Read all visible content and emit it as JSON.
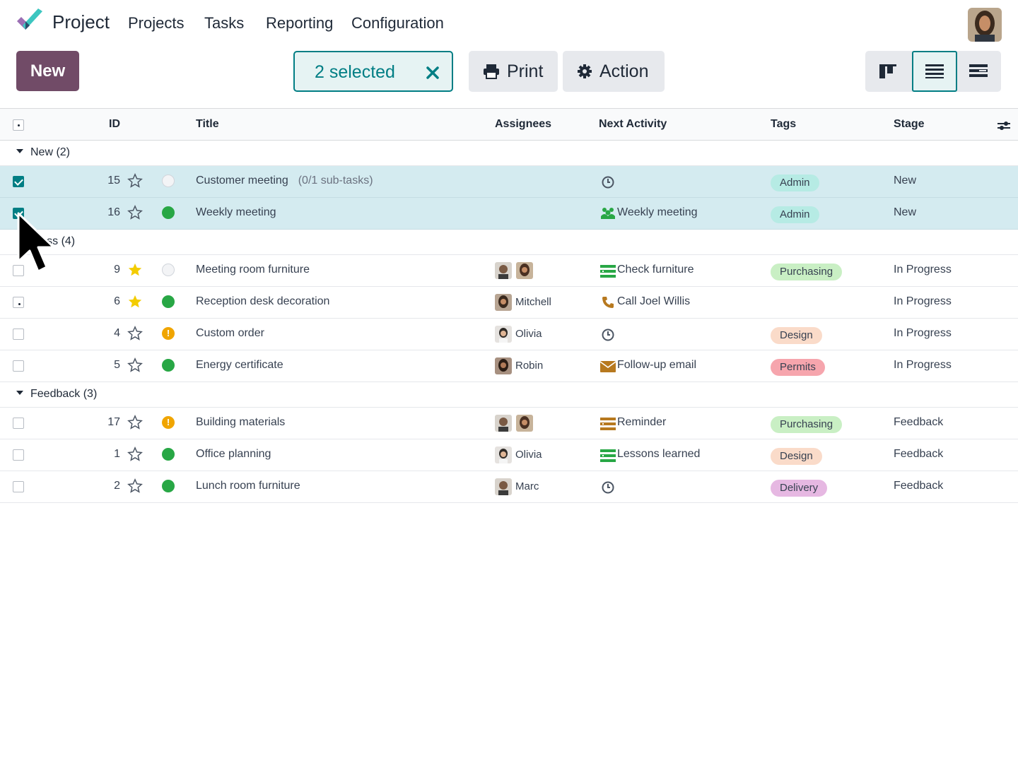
{
  "app": {
    "name": "Project"
  },
  "menu": [
    "Projects",
    "Tasks",
    "Reporting",
    "Configuration"
  ],
  "toolbar": {
    "new_label": "New",
    "selected_label": "2 selected",
    "print_label": "Print",
    "action_label": "Action"
  },
  "columns": {
    "id": "ID",
    "title": "Title",
    "assignees": "Assignees",
    "next_activity": "Next Activity",
    "tags": "Tags",
    "stage": "Stage"
  },
  "groups": [
    {
      "label": "New (2)"
    },
    {
      "label": "gress (4)"
    },
    {
      "label": "Feedback (3)"
    }
  ],
  "rows": [
    {
      "id": "15",
      "title": "Customer meeting",
      "subtasks": "(0/1 sub-tasks)",
      "assignee": "",
      "activity": "",
      "activity_icon": "clock-icon",
      "tag": "Admin",
      "stage": "New",
      "status": "none",
      "starred": false,
      "selected": true
    },
    {
      "id": "16",
      "title": "Weekly meeting",
      "subtasks": "",
      "assignee": "",
      "activity": "Weekly meeting",
      "activity_icon": "users-icon",
      "tag": "Admin",
      "stage": "New",
      "status": "green",
      "starred": false,
      "selected": true
    },
    {
      "id": "9",
      "title": "Meeting room furniture",
      "subtasks": "",
      "assignee": "",
      "activity": "Check furniture",
      "activity_icon": "todo-list-icon",
      "tag": "Purchasing",
      "stage": "In Progress",
      "status": "none",
      "starred": true,
      "selected": false
    },
    {
      "id": "6",
      "title": "Reception desk decoration",
      "subtasks": "",
      "assignee": "Mitchell",
      "activity": "Call Joel Willis",
      "activity_icon": "phone-icon",
      "tag": "",
      "stage": "In Progress",
      "status": "green",
      "starred": true,
      "selected": false
    },
    {
      "id": "4",
      "title": "Custom order",
      "subtasks": "",
      "assignee": "Olivia",
      "activity": "",
      "activity_icon": "clock-icon",
      "tag": "Design",
      "stage": "In Progress",
      "status": "orange",
      "starred": false,
      "selected": false
    },
    {
      "id": "5",
      "title": "Energy certificate",
      "subtasks": "",
      "assignee": "Robin",
      "activity": "Follow-up email",
      "activity_icon": "envelope-icon",
      "tag": "Permits",
      "stage": "In Progress",
      "status": "green",
      "starred": false,
      "selected": false
    },
    {
      "id": "17",
      "title": "Building materials",
      "subtasks": "",
      "assignee": "",
      "activity": "Reminder",
      "activity_icon": "todo-list-icon",
      "tag": "Purchasing",
      "stage": "Feedback",
      "status": "orange",
      "starred": false,
      "selected": false
    },
    {
      "id": "1",
      "title": "Office planning",
      "subtasks": "",
      "assignee": "Olivia",
      "activity": "Lessons learned",
      "activity_icon": "todo-list-icon",
      "tag": "Design",
      "stage": "Feedback",
      "status": "green",
      "starred": false,
      "selected": false
    },
    {
      "id": "2",
      "title": "Lunch room furniture",
      "subtasks": "",
      "assignee": "Marc",
      "activity": "",
      "activity_icon": "clock-icon",
      "tag": "Delivery",
      "stage": "Feedback",
      "status": "green",
      "starred": false,
      "selected": false
    }
  ],
  "colors": {
    "brand": "#714b67",
    "accent": "#017e84",
    "selected_row": "#d4ebf0"
  }
}
